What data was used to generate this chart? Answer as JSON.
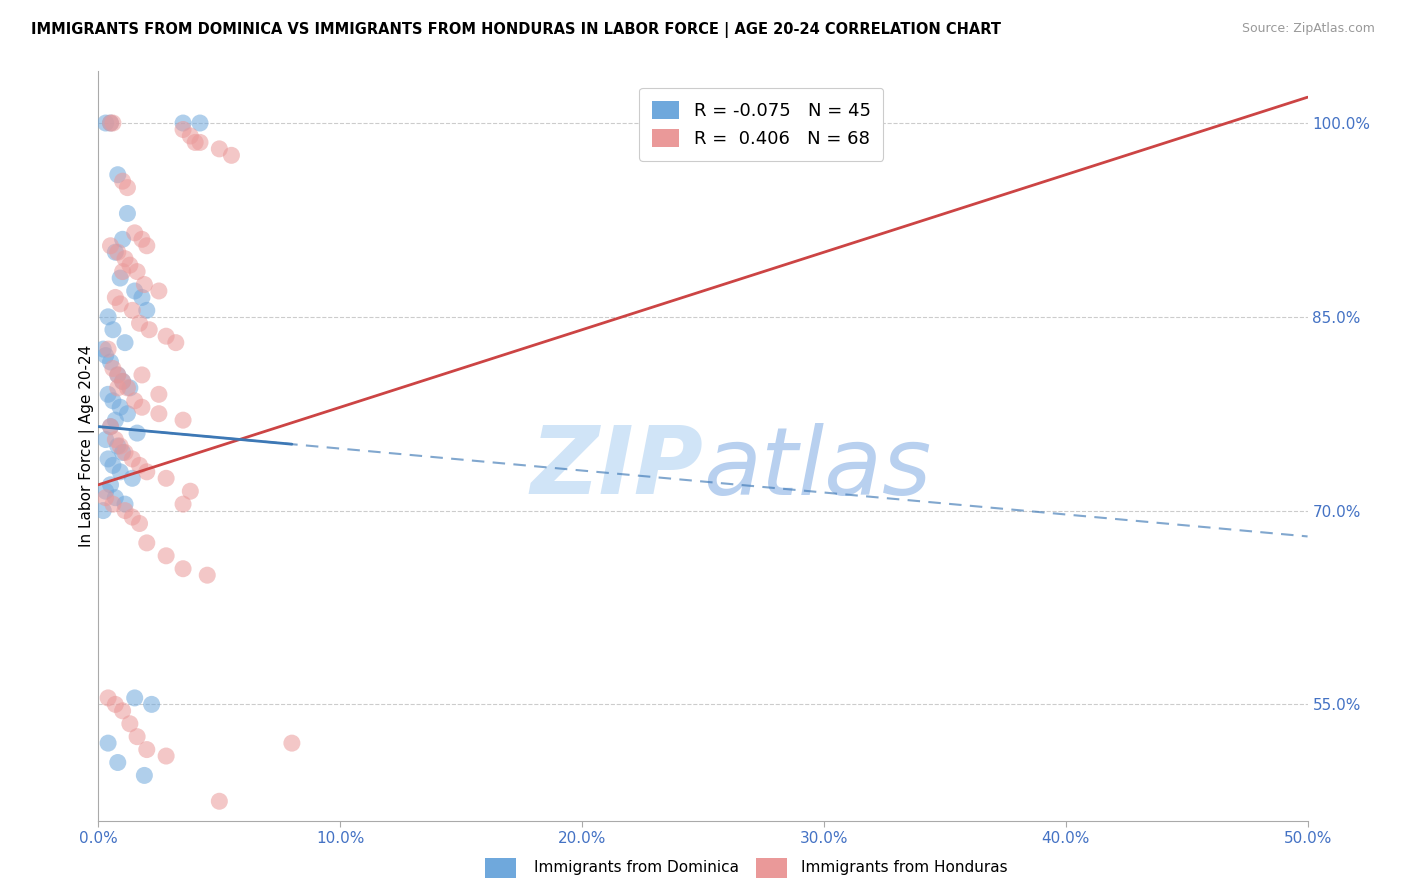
{
  "title": "IMMIGRANTS FROM DOMINICA VS IMMIGRANTS FROM HONDURAS IN LABOR FORCE | AGE 20-24 CORRELATION CHART",
  "source": "Source: ZipAtlas.com",
  "ylabel": "In Labor Force | Age 20-24",
  "right_yticks": [
    100.0,
    85.0,
    70.0,
    55.0
  ],
  "right_ytick_labels": [
    "100.0%",
    "85.0%",
    "70.0%",
    "55.0%"
  ],
  "xtick_positions": [
    0.0,
    10.0,
    20.0,
    30.0,
    40.0,
    50.0
  ],
  "xtick_labels": [
    "0.0%",
    "10.0%",
    "20.0%",
    "30.0%",
    "40.0%",
    "50.0%"
  ],
  "xmin": 0.0,
  "xmax": 50.0,
  "ymin": 46.0,
  "ymax": 104.0,
  "R_dominica": -0.075,
  "N_dominica": 45,
  "R_honduras": 0.406,
  "N_honduras": 68,
  "color_dominica": "#6fa8dc",
  "color_honduras": "#ea9999",
  "color_dominica_line": "#3d78b5",
  "color_honduras_line": "#cc4444",
  "dominica_x": [
    0.3,
    0.5,
    3.5,
    4.2,
    0.8,
    1.2,
    1.0,
    0.7,
    0.9,
    1.5,
    1.8,
    2.0,
    0.4,
    0.6,
    1.1,
    0.2,
    0.3,
    0.5,
    0.8,
    1.0,
    1.3,
    0.4,
    0.6,
    0.9,
    1.2,
    0.7,
    0.5,
    1.6,
    0.3,
    0.8,
    1.0,
    0.4,
    0.6,
    0.9,
    1.4,
    0.5,
    0.3,
    0.7,
    1.1,
    0.2,
    1.5,
    2.2,
    0.4,
    0.8,
    1.9
  ],
  "dominica_y": [
    100.0,
    100.0,
    100.0,
    100.0,
    96.0,
    93.0,
    91.0,
    90.0,
    88.0,
    87.0,
    86.5,
    85.5,
    85.0,
    84.0,
    83.0,
    82.5,
    82.0,
    81.5,
    80.5,
    80.0,
    79.5,
    79.0,
    78.5,
    78.0,
    77.5,
    77.0,
    76.5,
    76.0,
    75.5,
    75.0,
    74.5,
    74.0,
    73.5,
    73.0,
    72.5,
    72.0,
    71.5,
    71.0,
    70.5,
    70.0,
    55.5,
    55.0,
    52.0,
    50.5,
    49.5
  ],
  "honduras_x": [
    0.5,
    0.6,
    3.5,
    3.8,
    4.0,
    4.2,
    5.0,
    5.5,
    1.0,
    1.2,
    1.5,
    1.8,
    2.0,
    0.8,
    1.1,
    1.3,
    1.6,
    1.9,
    2.5,
    0.7,
    0.9,
    1.4,
    1.7,
    2.1,
    2.8,
    3.2,
    0.4,
    0.6,
    0.8,
    1.0,
    1.2,
    1.5,
    1.8,
    2.5,
    3.5,
    0.5,
    0.7,
    0.9,
    1.1,
    1.4,
    1.7,
    2.0,
    2.8,
    3.8,
    0.3,
    0.6,
    0.8,
    1.1,
    1.4,
    1.7,
    2.0,
    2.8,
    3.5,
    4.5,
    0.4,
    0.7,
    1.0,
    1.3,
    1.6,
    2.0,
    2.8,
    5.0,
    8.0,
    1.8,
    2.5,
    3.5,
    0.5,
    1.0
  ],
  "honduras_y": [
    100.0,
    100.0,
    99.5,
    99.0,
    98.5,
    98.5,
    98.0,
    97.5,
    95.5,
    95.0,
    91.5,
    91.0,
    90.5,
    90.0,
    89.5,
    89.0,
    88.5,
    87.5,
    87.0,
    86.5,
    86.0,
    85.5,
    84.5,
    84.0,
    83.5,
    83.0,
    82.5,
    81.0,
    80.5,
    80.0,
    79.5,
    78.5,
    78.0,
    77.5,
    77.0,
    76.5,
    75.5,
    75.0,
    74.5,
    74.0,
    73.5,
    73.0,
    72.5,
    71.5,
    71.0,
    70.5,
    79.5,
    70.0,
    69.5,
    69.0,
    67.5,
    66.5,
    65.5,
    65.0,
    55.5,
    55.0,
    54.5,
    53.5,
    52.5,
    51.5,
    51.0,
    47.5,
    52.0,
    80.5,
    79.0,
    70.5,
    90.5,
    88.5
  ],
  "dom_trendline_x0": 0.0,
  "dom_trendline_x1": 50.0,
  "dom_trendline_y0": 76.5,
  "dom_trendline_y1": 68.0,
  "dom_trendline_solid_x1": 8.0,
  "hon_trendline_x0": 0.0,
  "hon_trendline_x1": 50.0,
  "hon_trendline_y0": 72.0,
  "hon_trendline_y1": 102.0
}
